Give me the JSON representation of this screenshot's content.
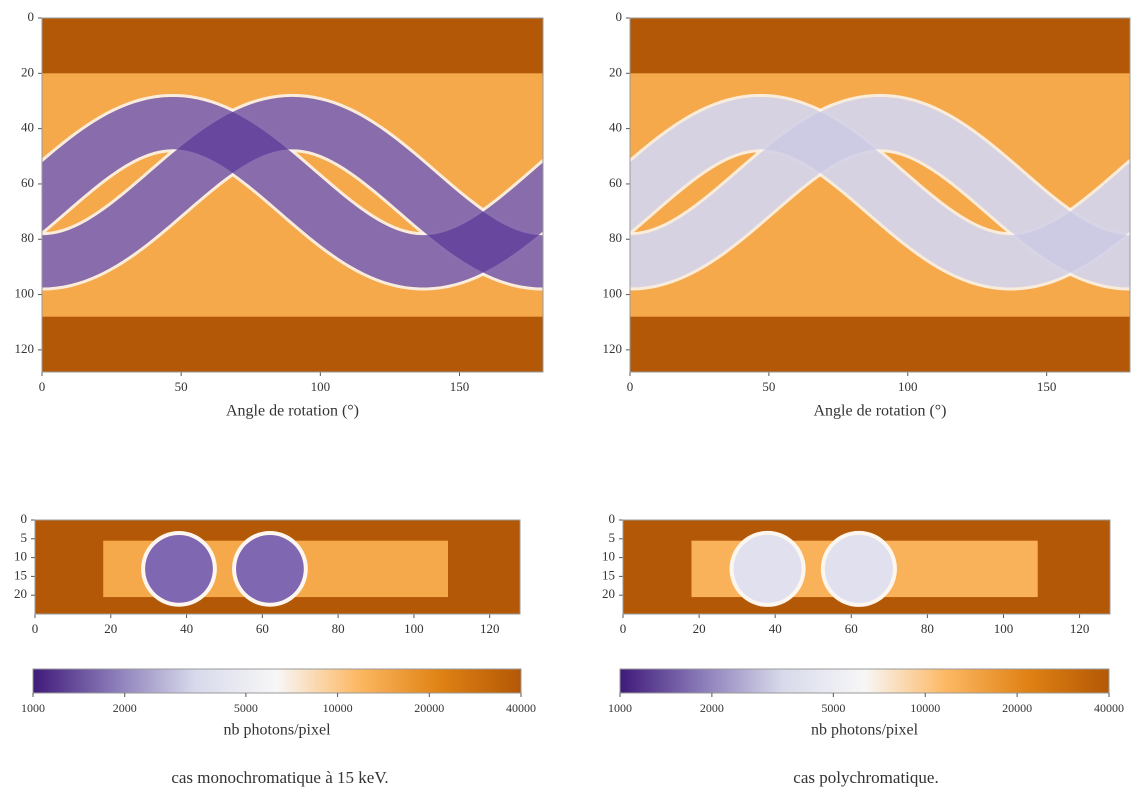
{
  "captions": [
    "cas monochromatique à 15 keV.",
    "cas polychromatique."
  ],
  "chart_data": [
    {
      "type": "image",
      "xlabel": "Angle de rotation (°)",
      "xlim": [
        0,
        180
      ],
      "ylim": [
        128,
        0
      ],
      "xticks": [
        0,
        50,
        100,
        150
      ],
      "yticks": [
        0,
        20,
        40,
        60,
        80,
        100,
        120
      ],
      "background": "#b35806",
      "fill": "#f6a94b",
      "band_color": "#5b3a98"
    },
    {
      "type": "slice",
      "xlim": [
        0,
        128
      ],
      "ylim": [
        25,
        0
      ],
      "xticks": [
        0,
        20,
        40,
        60,
        80,
        100,
        120
      ],
      "yticks": [
        0,
        5,
        10,
        15,
        20
      ],
      "background": "#b35806",
      "fill": "#f6a94b",
      "band_color": "#6a4ea6"
    },
    {
      "type": "colorbar",
      "xlabel": "nb photons/pixel",
      "log": true,
      "xlim": [
        1000,
        40000
      ],
      "xticks": [
        1000,
        2000,
        5000,
        10000,
        20000,
        40000
      ],
      "colormap": [
        "#3f1a7a",
        "#8a7bb8",
        "#d8daeb",
        "#f7f7f7",
        "#fdb863",
        "#e08214",
        "#b35806"
      ]
    },
    {
      "type": "image",
      "xlabel": "Angle de rotation (°)",
      "xlim": [
        0,
        180
      ],
      "ylim": [
        128,
        0
      ],
      "xticks": [
        0,
        50,
        100,
        150
      ],
      "yticks": [
        0,
        20,
        40,
        60,
        80,
        100,
        120
      ],
      "background": "#b35806",
      "fill": "#f6a94b",
      "band_color": "#c9c8e3"
    },
    {
      "type": "slice",
      "xlim": [
        0,
        128
      ],
      "ylim": [
        25,
        0
      ],
      "xticks": [
        0,
        20,
        40,
        60,
        80,
        100,
        120
      ],
      "yticks": [
        0,
        5,
        10,
        15,
        20
      ],
      "background": "#b35806",
      "fill": "#f9b25a",
      "band_color": "#dcdcee"
    },
    {
      "type": "colorbar",
      "xlabel": "nb photons/pixel",
      "log": true,
      "xlim": [
        1000,
        40000
      ],
      "xticks": [
        1000,
        2000,
        5000,
        10000,
        20000,
        40000
      ],
      "colormap": [
        "#3f1a7a",
        "#8a7bb8",
        "#d8daeb",
        "#f7f7f7",
        "#fdb863",
        "#e08214",
        "#b35806"
      ]
    }
  ]
}
